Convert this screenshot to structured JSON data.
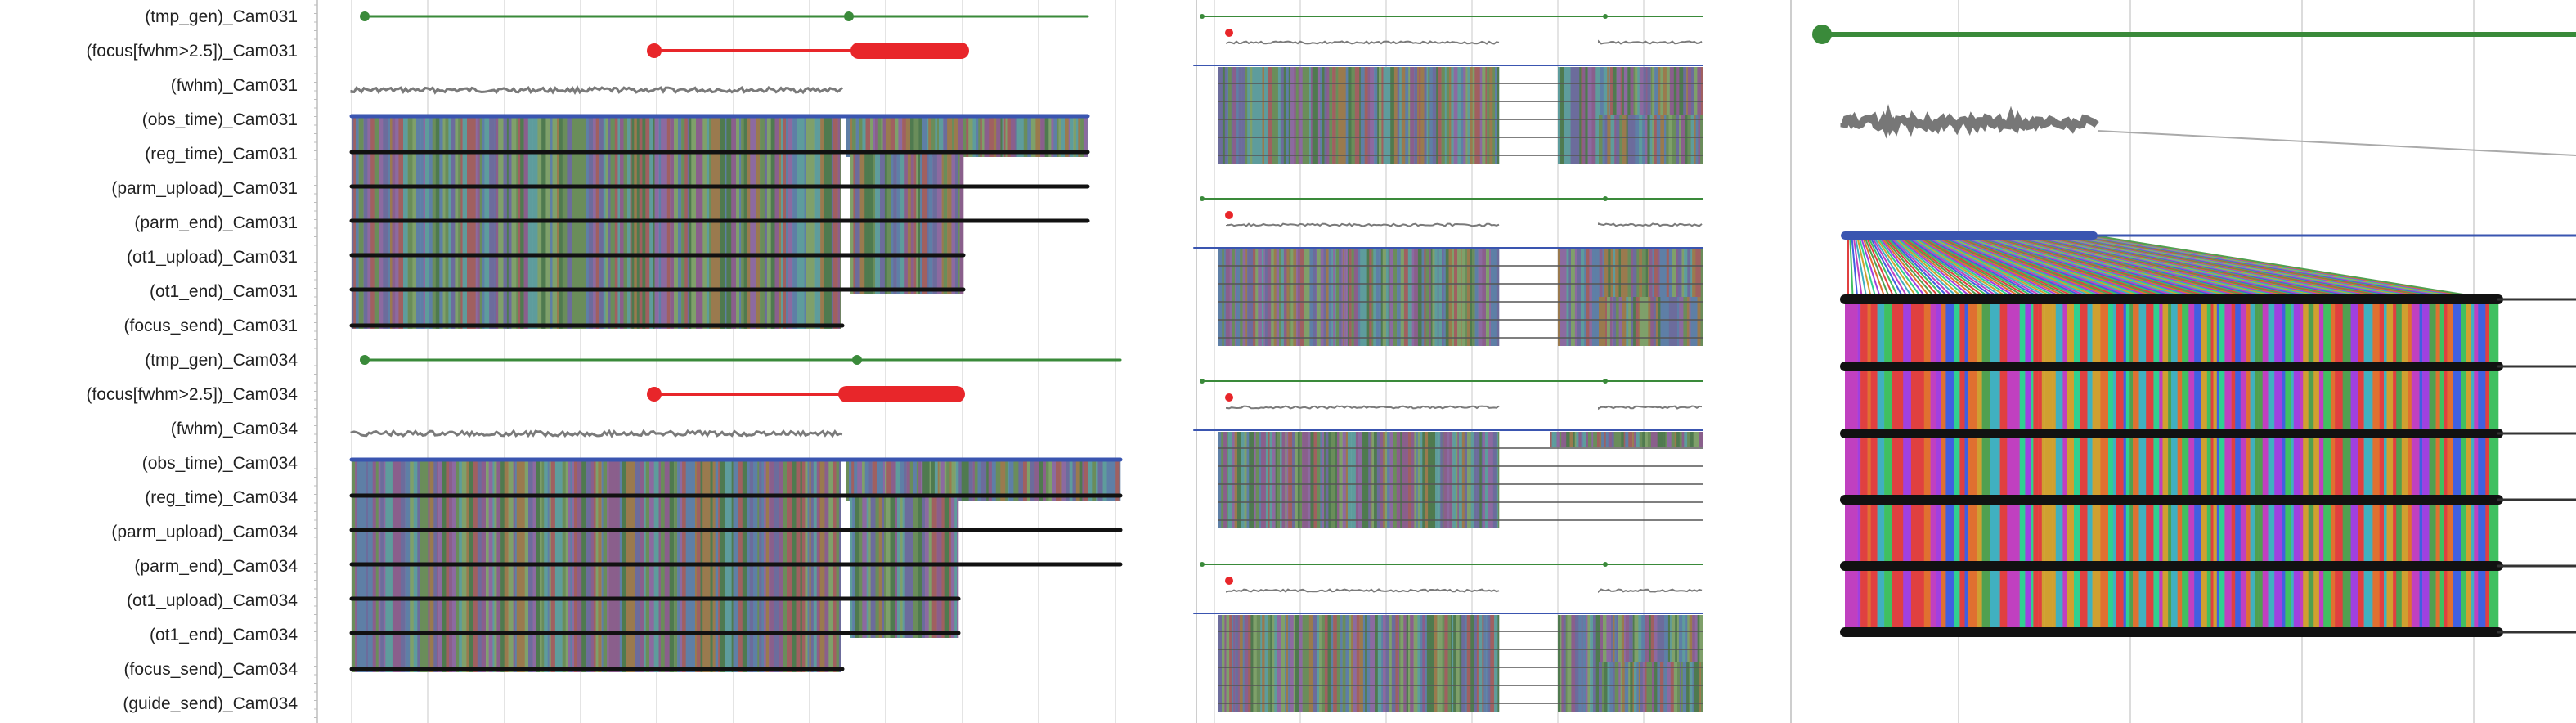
{
  "chart_data": {
    "type": "timeline",
    "row_labels": [
      "(tmp_gen)_Cam031",
      "(focus[fwhm>2.5])_Cam031",
      "(fwhm)_Cam031",
      "(obs_time)_Cam031",
      "(reg_time)_Cam031",
      "(parm_upload)_Cam031",
      "(parm_end)_Cam031",
      "(ot1_upload)_Cam031",
      "(ot1_end)_Cam031",
      "(focus_send)_Cam031",
      "(tmp_gen)_Cam034",
      "(focus[fwhm>2.5])_Cam034",
      "(fwhm)_Cam034",
      "(obs_time)_Cam034",
      "(reg_time)_Cam034",
      "(parm_upload)_Cam034",
      "(parm_end)_Cam034",
      "(ot1_upload)_Cam034",
      "(ot1_end)_Cam034",
      "(focus_send)_Cam034",
      "(guide_send)_Cam034"
    ],
    "colors": {
      "tmp_gen": "#3a8a3a",
      "focus": "#e8262a",
      "fwhm": "#7a7a7a",
      "obs_time": "#3a55b0",
      "event_line": "#111111",
      "grid": "#dcdcdc",
      "stripes": [
        "#6a8d5a",
        "#8a5f8c",
        "#5e7fa6",
        "#a06060",
        "#6c6c9c",
        "#7fa06a",
        "#9a7a4e",
        "#5e9c9c",
        "#8c6aa0",
        "#4f7a4f"
      ],
      "stripes_zoom": [
        "#e04040",
        "#40c060",
        "#4060e0",
        "#c040c0",
        "#40b0c0",
        "#d0a030",
        "#30d090",
        "#a040e0",
        "#e07030",
        "#50a050"
      ]
    },
    "panels": [
      {
        "view": "full",
        "label_rows": "all"
      },
      {
        "view": "mini-1",
        "camera": "Cam031"
      },
      {
        "view": "mini-2",
        "camera": "Cam034"
      },
      {
        "view": "mini-3",
        "camera": "Cam031"
      },
      {
        "view": "mini-4",
        "camera": "Cam034"
      },
      {
        "view": "zoom",
        "camera": "Cam031"
      }
    ],
    "grid": true
  }
}
